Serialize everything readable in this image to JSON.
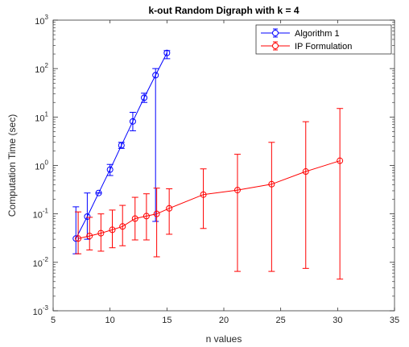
{
  "chart_data": {
    "type": "line",
    "title": "k-out Random Digraph with k =  4",
    "xlabel": "n values",
    "ylabel": "Computation Time (sec)",
    "xlim": [
      5,
      35
    ],
    "ylim": [
      0.001,
      1000
    ],
    "yscale": "log",
    "x_ticks": [
      "5",
      "10",
      "15",
      "20",
      "25",
      "30",
      "35"
    ],
    "y_ticks": [
      {
        "base": "10",
        "exp": "-3"
      },
      {
        "base": "10",
        "exp": "-2"
      },
      {
        "base": "10",
        "exp": "-1"
      },
      {
        "base": "10",
        "exp": "0"
      },
      {
        "base": "10",
        "exp": "1"
      },
      {
        "base": "10",
        "exp": "2"
      },
      {
        "base": "10",
        "exp": "3"
      }
    ],
    "grid": false,
    "legend_position": "top-right",
    "series": [
      {
        "name": "Algorithm 1",
        "color": "#0000ff",
        "marker": "circle",
        "points": [
          {
            "x": 7,
            "y": 0.031,
            "low": 0.015,
            "high": 0.14
          },
          {
            "x": 8,
            "y": 0.088,
            "low": 0.03,
            "high": 0.27
          },
          {
            "x": 9,
            "y": 0.27,
            "low": 0.27,
            "high": 0.27
          },
          {
            "x": 10,
            "y": 0.82,
            "low": 0.62,
            "high": 1.05
          },
          {
            "x": 11,
            "y": 2.6,
            "low": 2.25,
            "high": 3.0
          },
          {
            "x": 12,
            "y": 8.1,
            "low": 5.2,
            "high": 12.5
          },
          {
            "x": 13,
            "y": 25,
            "low": 20,
            "high": 31
          },
          {
            "x": 14,
            "y": 73,
            "low": 0.07,
            "high": 100
          },
          {
            "x": 15,
            "y": 210,
            "low": 160,
            "high": 235
          }
        ]
      },
      {
        "name": "IP Formulation",
        "color": "#ff0000",
        "marker": "circle",
        "points": [
          {
            "x": 7.2,
            "y": 0.031,
            "low": 0.015,
            "high": 0.11
          },
          {
            "x": 8.2,
            "y": 0.035,
            "low": 0.018,
            "high": 0.085
          },
          {
            "x": 9.2,
            "y": 0.04,
            "low": 0.017,
            "high": 0.1
          },
          {
            "x": 10.2,
            "y": 0.047,
            "low": 0.02,
            "high": 0.12
          },
          {
            "x": 11.1,
            "y": 0.055,
            "low": 0.022,
            "high": 0.15
          },
          {
            "x": 12.2,
            "y": 0.08,
            "low": 0.029,
            "high": 0.22
          },
          {
            "x": 13.2,
            "y": 0.09,
            "low": 0.029,
            "high": 0.26
          },
          {
            "x": 14.1,
            "y": 0.1,
            "low": 0.013,
            "high": 0.34
          },
          {
            "x": 15.2,
            "y": 0.13,
            "low": 0.038,
            "high": 0.33
          },
          {
            "x": 18.2,
            "y": 0.25,
            "low": 0.05,
            "high": 0.85
          },
          {
            "x": 21.2,
            "y": 0.31,
            "low": 0.0065,
            "high": 1.7
          },
          {
            "x": 24.2,
            "y": 0.41,
            "low": 0.0065,
            "high": 3.0
          },
          {
            "x": 27.2,
            "y": 0.75,
            "low": 0.0075,
            "high": 8.0
          },
          {
            "x": 30.2,
            "y": 1.25,
            "low": 0.0045,
            "high": 15
          }
        ]
      }
    ]
  }
}
